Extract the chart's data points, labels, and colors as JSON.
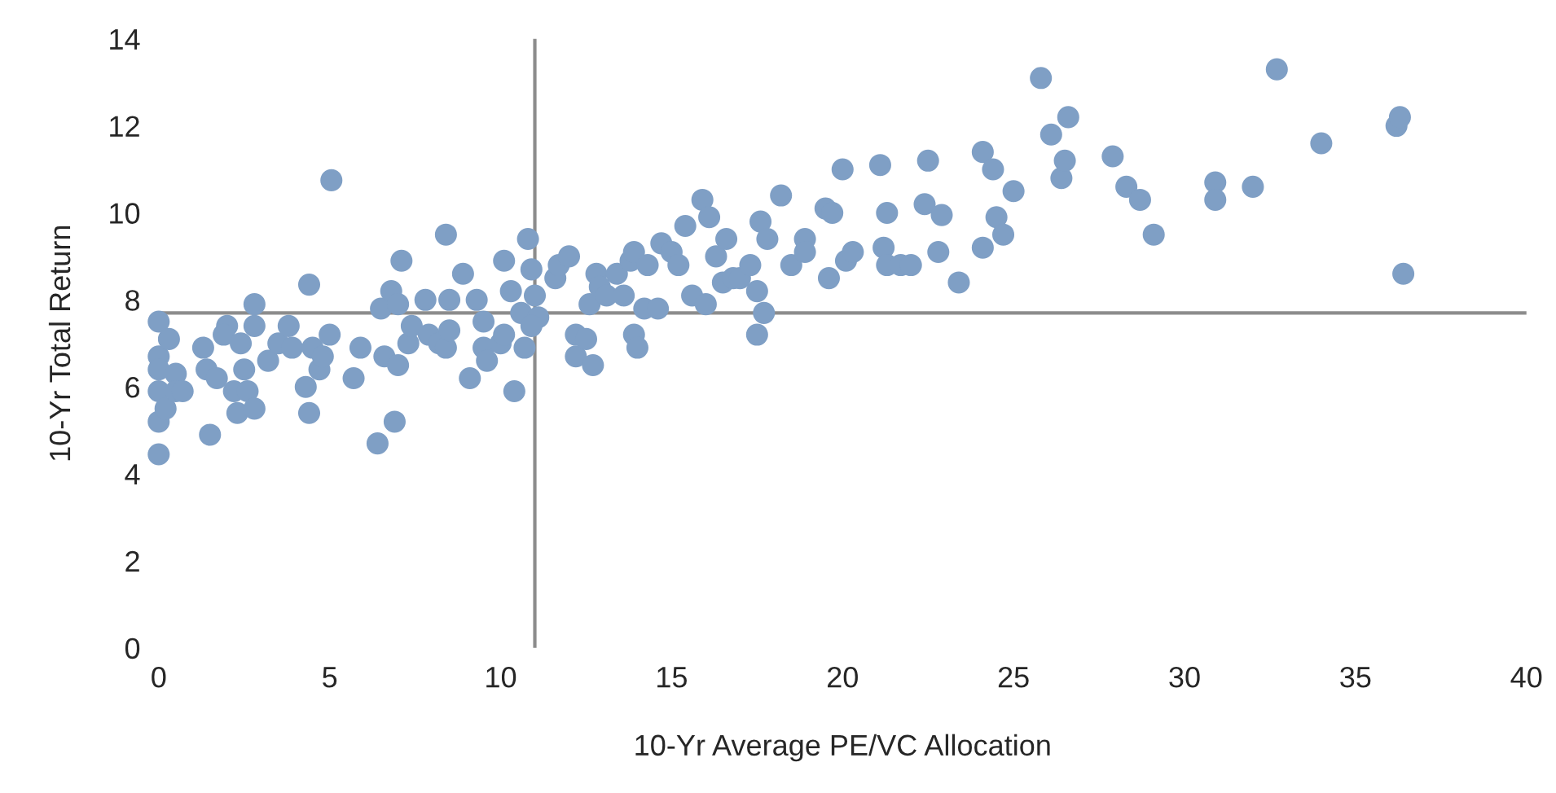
{
  "chart_data": {
    "type": "scatter",
    "xlabel": "10-Yr Average PE/VC Allocation",
    "ylabel": "10-Yr Total Return",
    "x": [
      0,
      0,
      0,
      0,
      0,
      0,
      0.3,
      0.2,
      0.5,
      0.5,
      0.7,
      1.3,
      1.5,
      1.4,
      1.7,
      2.0,
      1.9,
      2.2,
      2.3,
      2.5,
      2.4,
      2.6,
      2.8,
      2.8,
      2.8,
      3.2,
      3.5,
      3.8,
      3.9,
      4.3,
      4.4,
      4.4,
      4.5,
      4.7,
      4.8,
      5.0,
      5.05,
      5.7,
      5.9,
      6.5,
      6.4,
      6.6,
      6.8,
      6.9,
      7.0,
      7.1,
      7.0,
      7.3,
      7.4,
      7.8,
      7.9,
      8.2,
      8.4,
      8.4,
      8.5,
      8.5,
      8.9,
      9.1,
      9.3,
      9.5,
      9.5,
      9.6,
      10.0,
      10.1,
      10.1,
      10.3,
      10.4,
      10.6,
      10.7,
      10.8,
      10.9,
      11.0,
      11.1,
      10.9,
      11.6,
      11.7,
      12.0,
      12.2,
      12.2,
      12.5,
      12.6,
      12.7,
      12.8,
      12.9,
      13.1,
      13.4,
      13.6,
      13.8,
      13.9,
      13.9,
      14.0,
      14.2,
      14.3,
      14.6,
      14.7,
      15.0,
      15.2,
      15.4,
      15.6,
      15.9,
      16.0,
      16.1,
      16.3,
      16.5,
      16.6,
      16.8,
      17.0,
      17.3,
      17.5,
      17.6,
      17.7,
      17.5,
      17.8,
      18.2,
      18.5,
      18.9,
      18.9,
      19.5,
      19.7,
      19.6,
      20.0,
      20.1,
      20.3,
      21.1,
      21.2,
      21.3,
      21.3,
      21.7,
      22.0,
      22.4,
      22.5,
      22.8,
      22.9,
      23.4,
      24.1,
      24.1,
      24.4,
      24.5,
      24.7,
      25.0,
      25.8,
      26.1,
      26.4,
      26.5,
      26.6,
      27.9,
      28.3,
      28.7,
      29.1,
      30.9,
      30.9,
      32.0,
      32.7,
      34.0,
      36.2,
      36.3,
      36.4
    ],
    "values": [
      7.5,
      6.7,
      6.4,
      5.9,
      5.2,
      4.45,
      7.1,
      5.5,
      6.3,
      5.9,
      5.9,
      6.9,
      4.9,
      6.4,
      6.2,
      7.4,
      7.2,
      5.9,
      5.4,
      6.4,
      7.0,
      5.9,
      5.5,
      7.4,
      7.9,
      6.6,
      7.0,
      7.4,
      6.9,
      6.0,
      8.35,
      5.4,
      6.9,
      6.4,
      6.7,
      7.2,
      10.75,
      6.2,
      6.9,
      7.8,
      4.7,
      6.7,
      8.2,
      5.2,
      7.9,
      8.9,
      6.5,
      7.0,
      7.4,
      8.0,
      7.2,
      7.0,
      6.9,
      9.5,
      8.0,
      7.3,
      8.6,
      6.2,
      8.0,
      7.5,
      6.9,
      6.6,
      7.0,
      8.9,
      7.2,
      8.2,
      5.9,
      7.7,
      6.9,
      9.4,
      8.7,
      8.1,
      7.6,
      7.4,
      8.5,
      8.8,
      9.0,
      7.2,
      6.7,
      7.1,
      7.9,
      6.5,
      8.6,
      8.3,
      8.1,
      8.6,
      8.1,
      8.9,
      9.1,
      7.2,
      6.9,
      7.8,
      8.8,
      7.8,
      9.3,
      9.1,
      8.8,
      9.7,
      8.1,
      10.3,
      7.9,
      9.9,
      9.0,
      8.4,
      9.4,
      8.5,
      8.5,
      8.8,
      7.2,
      9.8,
      7.7,
      8.2,
      9.4,
      10.4,
      8.8,
      9.4,
      9.1,
      10.1,
      10.0,
      8.5,
      11.0,
      8.9,
      9.1,
      11.1,
      9.2,
      10.0,
      8.8,
      8.8,
      8.8,
      10.2,
      11.2,
      9.1,
      9.95,
      8.4,
      11.4,
      9.2,
      11.0,
      9.9,
      9.5,
      10.5,
      13.1,
      11.8,
      10.8,
      11.2,
      12.2,
      11.3,
      10.6,
      10.3,
      9.5,
      10.7,
      10.3,
      10.6,
      13.3,
      11.6,
      12.0,
      12.2,
      8.6
    ],
    "color": "#7f9fc5",
    "marker": "circle",
    "xlim": [
      0,
      40
    ],
    "xticks": [
      0,
      5,
      10,
      15,
      20,
      25,
      30,
      35,
      40
    ],
    "ylim": [
      0,
      14
    ],
    "yticks": [
      0,
      2,
      4,
      6,
      8,
      10,
      12,
      14
    ],
    "ref_lines": [
      {
        "axis": "x",
        "value": 11.0,
        "color": "#8c8c8c"
      },
      {
        "axis": "y",
        "value": 7.7,
        "color": "#8c8c8c"
      }
    ],
    "grid": false,
    "legend": false
  }
}
